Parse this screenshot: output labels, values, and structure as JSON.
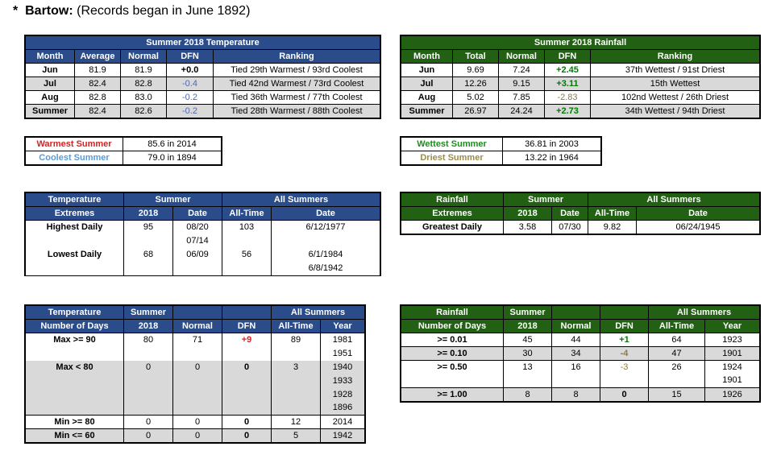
{
  "header": {
    "asterisk": "*",
    "station": "Bartow:",
    "note": "(Records began in June 1892)"
  },
  "temp": {
    "title": "Summer 2018 Temperature",
    "cols": [
      "Month",
      "Average",
      "Normal",
      "DFN",
      "Ranking"
    ],
    "rows": [
      [
        "Jun",
        "81.9",
        "81.9",
        "+0.0",
        "Tied 29th Warmest / 93rd Coolest"
      ],
      [
        "Jul",
        "82.4",
        "82.8",
        "-0.4",
        "Tied 42nd Warmest / 73rd Coolest"
      ],
      [
        "Aug",
        "82.8",
        "83.0",
        "-0.2",
        "Tied 36th Warmest / 77th Coolest"
      ],
      [
        "Summer",
        "82.4",
        "82.6",
        "-0.2",
        "Tied 28th Warmest / 88th Coolest"
      ]
    ]
  },
  "rain": {
    "title": "Summer 2018 Rainfall",
    "cols": [
      "Month",
      "Total",
      "Normal",
      "DFN",
      "Ranking"
    ],
    "rows": [
      [
        "Jun",
        "9.69",
        "7.24",
        "+2.45",
        "37th Wettest / 91st Driest"
      ],
      [
        "Jul",
        "12.26",
        "9.15",
        "+3.11",
        "15th Wettest"
      ],
      [
        "Aug",
        "5.02",
        "7.85",
        "-2.83",
        "102nd Wettest / 26th Driest"
      ],
      [
        "Summer",
        "26.97",
        "24.24",
        "+2.73",
        "34th Wettest / 94th Driest"
      ]
    ]
  },
  "temp_records": {
    "warm_label": "Warmest Summer",
    "warm_value": "85.6 in 2014",
    "cool_label": "Coolest Summer",
    "cool_value": "79.0 in 1894"
  },
  "rain_records": {
    "wet_label": "Wettest Summer",
    "wet_value": "36.81 in 2003",
    "dry_label": "Driest Summer",
    "dry_value": "13.22 in 1964"
  },
  "temp_ext": {
    "h1": "Temperature",
    "h2": "Extremes",
    "summer": "Summer",
    "all": "All Summers",
    "year": "2018",
    "date": "Date",
    "alltime": "All-Time",
    "adate": "Date",
    "high_label": "Highest Daily",
    "high_val": "95",
    "high_date": "08/20",
    "high_date2": "07/14",
    "high_all": "103",
    "high_adate": "6/12/1977",
    "low_label": "Lowest Daily",
    "low_val": "68",
    "low_date": "06/09",
    "low_all": "56",
    "low_adate": "6/1/1984",
    "low_adate2": "6/8/1942"
  },
  "rain_ext": {
    "h1": "Rainfall",
    "h2": "Extremes",
    "summer": "Summer",
    "all": "All Summers",
    "year": "2018",
    "date": "Date",
    "alltime": "All-Time",
    "adate": "Date",
    "label": "Greatest Daily",
    "val": "3.58",
    "vdate": "07/30",
    "all_val": "9.82",
    "all_date": "06/24/1945"
  },
  "temp_days": {
    "h1": "Temperature",
    "h2": "Number of Days",
    "summer1": "Summer",
    "summer2": "2018",
    "normal": "Normal",
    "dfn": "DFN",
    "all": "All Summers",
    "alltime": "All-Time",
    "year": "Year",
    "max90": {
      "label": "Max >= 90",
      "val": "80",
      "normal": "71",
      "dfn": "+9",
      "alltime": "89",
      "years": [
        "1981",
        "1951"
      ]
    },
    "max80": {
      "label": "Max < 80",
      "val": "0",
      "normal": "0",
      "dfn": "0",
      "alltime": "3",
      "years": [
        "1940",
        "1933",
        "1928",
        "1896"
      ]
    },
    "min80": {
      "label": "Min >= 80",
      "val": "0",
      "normal": "0",
      "dfn": "0",
      "alltime": "12",
      "year": "2014"
    },
    "min60": {
      "label": "Min <= 60",
      "val": "0",
      "normal": "0",
      "dfn": "0",
      "alltime": "5",
      "year": "1942"
    }
  },
  "rain_days": {
    "h1": "Rainfall",
    "h2": "Number of Days",
    "summer1": "Summer",
    "summer2": "2018",
    "normal": "Normal",
    "dfn": "DFN",
    "all": "All Summers",
    "alltime": "All-Time",
    "year": "Year",
    "r001": {
      "label": ">= 0.01",
      "val": "45",
      "normal": "44",
      "dfn": "+1",
      "alltime": "64",
      "year": "1923"
    },
    "r010": {
      "label": ">= 0.10",
      "val": "30",
      "normal": "34",
      "dfn": "-4",
      "alltime": "47",
      "year": "1901"
    },
    "r050": {
      "label": ">= 0.50",
      "val": "13",
      "normal": "16",
      "dfn": "-3",
      "alltime": "26",
      "years": [
        "1924",
        "1901"
      ]
    },
    "r100": {
      "label": ">= 1.00",
      "val": "8",
      "normal": "8",
      "dfn": "0",
      "alltime": "15",
      "year": "1926"
    }
  }
}
